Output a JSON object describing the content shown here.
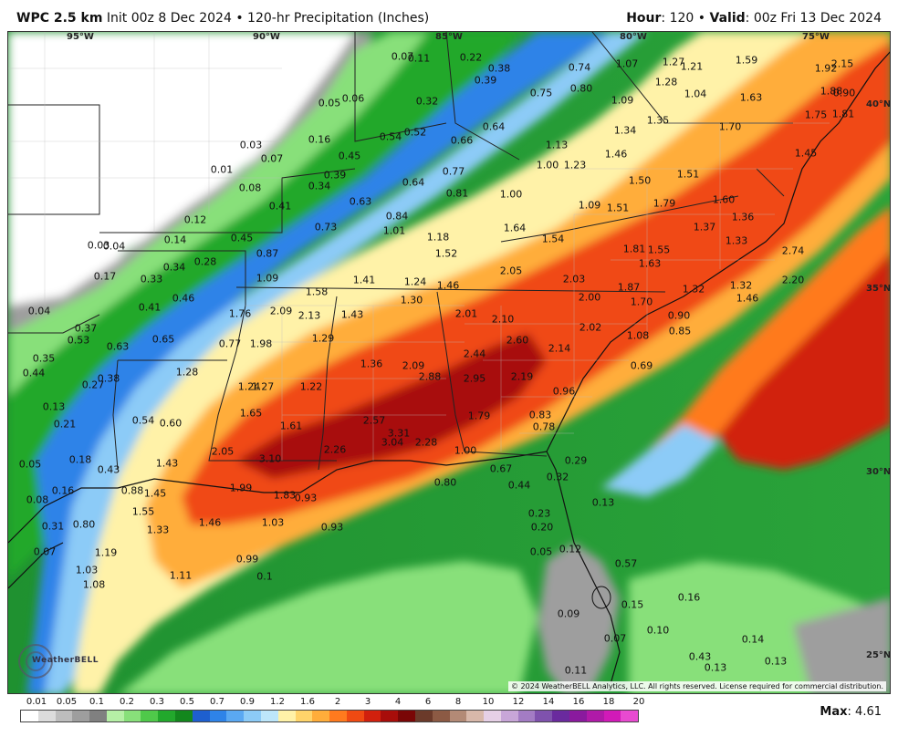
{
  "header": {
    "product": "WPC 2.5 km",
    "init": "Init 00z 8 Dec 2024",
    "field": "120-hr Precipitation (Inches)",
    "hour_label": "Hour",
    "hour_value": "120",
    "valid_label": "Valid",
    "valid_value": "00z Fri 13 Dec 2024"
  },
  "grid_labels": [
    "95°W",
    "90°W",
    "85°W",
    "80°W",
    "75°W",
    "40°N",
    "35°N",
    "30°N",
    "25°N"
  ],
  "point_values": [
    "0.07",
    "0.11",
    "0.22",
    "0.38",
    "0.74",
    "1.07",
    "1.27",
    "1.21",
    "1.59",
    "1.92",
    "2.15",
    "0.39",
    "0.75",
    "0.80",
    "1.28",
    "1.04",
    "1.88",
    "0.90",
    "0.05",
    "0.06",
    "0.32",
    "0.64",
    "1.09",
    "1.63",
    "1.75",
    "1.81",
    "0.03",
    "0.54",
    "0.52",
    "0.66",
    "1.13",
    "1.35",
    "1.34",
    "1.70",
    "0.07",
    "0.16",
    "0.45",
    "1.00",
    "1.23",
    "1.46",
    "1.45",
    "0.01",
    "0.39",
    "0.77",
    "0.08",
    "0.34",
    "0.64",
    "0.81",
    "1.00",
    "1.50",
    "1.51",
    "0.63",
    "1.09",
    "1.51",
    "1.79",
    "1.60",
    "0.41",
    "0.12",
    "0.73",
    "0.84",
    "1.36",
    "1.01",
    "1.64",
    "1.37",
    "0.14",
    "0.45",
    "1.18",
    "1.54",
    "1.33",
    "0.03",
    "0.04",
    "0.87",
    "1.52",
    "1.81",
    "1.55",
    "2.74",
    "0.34",
    "0.28",
    "1.63",
    "0.17",
    "0.33",
    "1.09",
    "1.41",
    "1.24",
    "1.46",
    "2.05",
    "2.03",
    "1.87",
    "1.32",
    "1.32",
    "2.20",
    "0.46",
    "1.58",
    "1.30",
    "2.00",
    "1.70",
    "1.46",
    "0.04",
    "0.41",
    "1.76",
    "2.09",
    "2.13",
    "1.43",
    "2.01",
    "2.10",
    "2.02",
    "0.90",
    "0.37",
    "0.53",
    "0.63",
    "0.65",
    "0.77",
    "1.98",
    "1.29",
    "2.60",
    "2.14",
    "1.08",
    "0.85",
    "0.35",
    "0.44",
    "1.28",
    "1.36",
    "2.09",
    "2.44",
    "0.69",
    "0.38",
    "0.27",
    "1.24",
    "1.27",
    "1.22",
    "2.88",
    "2.95",
    "2.19",
    "0.96",
    "0.13",
    "0.54",
    "0.60",
    "1.65",
    "1.79",
    "0.83",
    "0.21",
    "1.61",
    "2.57",
    "3.31",
    "0.78",
    "3.04",
    "2.28",
    "2.05",
    "3.10",
    "2.26",
    "1.00",
    "0.05",
    "0.18",
    "1.43",
    "0.29",
    "0.43",
    "0.80",
    "0.67",
    "0.32",
    "0.16",
    "0.88",
    "1.45",
    "1.99",
    "1.83",
    "0.93",
    "0.44",
    "0.08",
    "0.13",
    "1.55",
    "1.46",
    "1.03",
    "0.23",
    "0.31",
    "0.80",
    "1.33",
    "0.93",
    "0.20",
    "0.07",
    "1.19",
    "0.05",
    "0.12",
    "0.99",
    "1.03",
    "0.57",
    "0.1",
    "1.11",
    "1.08",
    "0.15",
    "0.16",
    "0.09",
    "0.10",
    "0.07",
    "0.14",
    "0.43",
    "0.13",
    "0.13",
    "0.11"
  ],
  "copyright": "© 2024 WeatherBELL Analytics, LLC. All rights reserved. License required for commercial distribution.",
  "logo_text": "WeatherBELL",
  "colorbar": {
    "ticks": [
      "0.01",
      "0.05",
      "0.1",
      "0.2",
      "0.3",
      "0.5",
      "0.7",
      "0.9",
      "1.2",
      "1.6",
      "2",
      "3",
      "4",
      "6",
      "8",
      "10",
      "12",
      "14",
      "16",
      "18",
      "20"
    ],
    "colors": [
      "#ffffff",
      "#dcdcdc",
      "#bdbdbd",
      "#9e9e9e",
      "#808080",
      "#b6f0a6",
      "#88e07a",
      "#4fc94a",
      "#22a82c",
      "#13871d",
      "#1e5fcf",
      "#2e83e8",
      "#5aa8f2",
      "#8ccbf7",
      "#bde6fa",
      "#fff2a8",
      "#ffd46a",
      "#ffad3a",
      "#ff7a1e",
      "#f04a12",
      "#d1200d",
      "#a80d0a",
      "#7a0606",
      "#6b3a2a",
      "#8c5a44",
      "#b38a76",
      "#d8b8aa",
      "#e6d0e6",
      "#c8a6d8",
      "#a37cc4",
      "#7f52ad",
      "#6a2a9e",
      "#8a1a9e",
      "#b01aa8",
      "#d11ab8",
      "#e84ad0"
    ]
  },
  "max_label": "Max",
  "max_value": "4.61"
}
